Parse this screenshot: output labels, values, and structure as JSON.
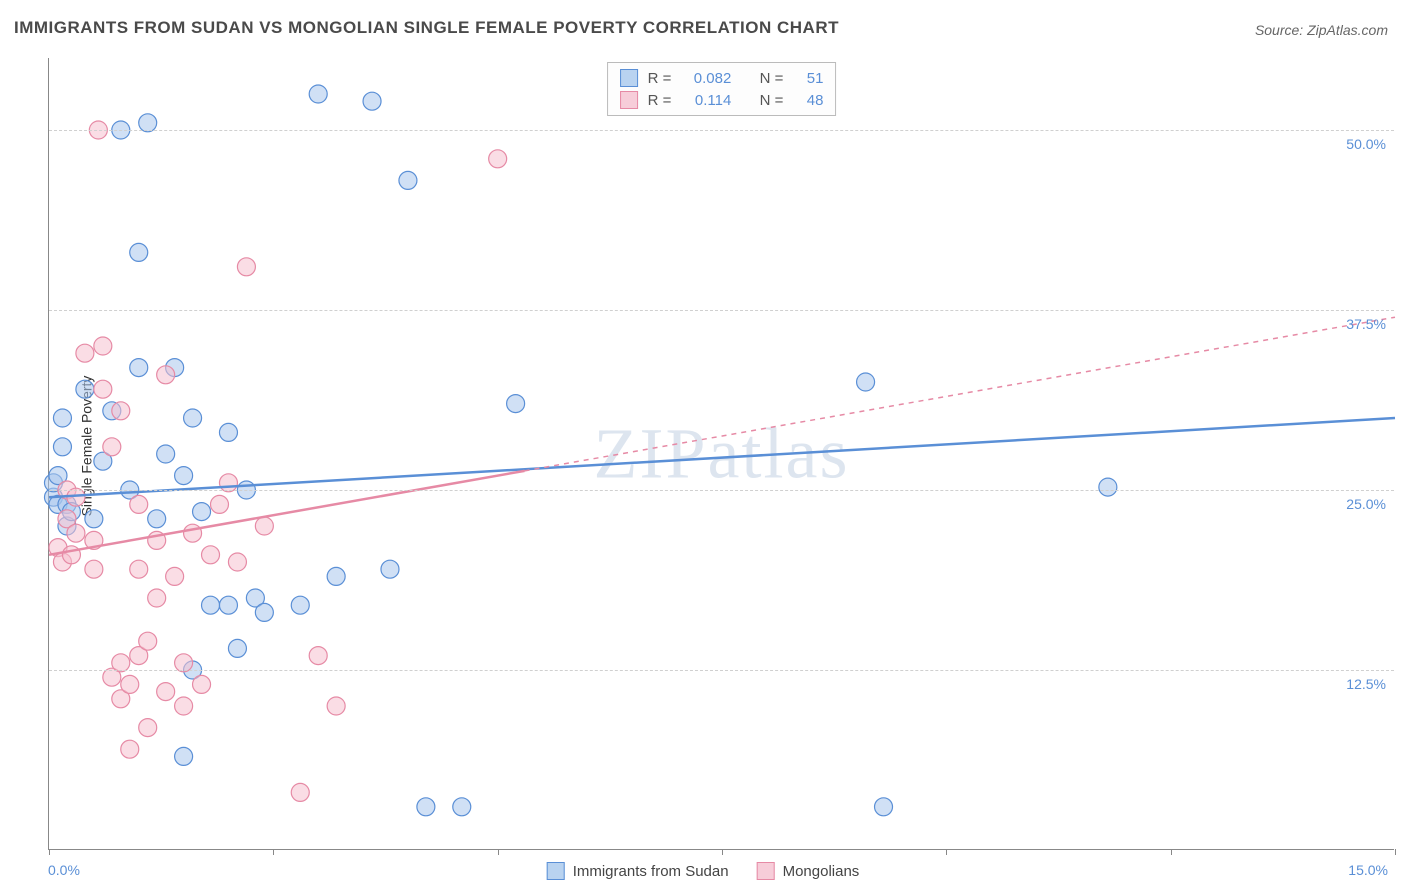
{
  "title": "IMMIGRANTS FROM SUDAN VS MONGOLIAN SINGLE FEMALE POVERTY CORRELATION CHART",
  "source": "Source: ZipAtlas.com",
  "watermark": "ZIPatlas",
  "y_axis_label": "Single Female Poverty",
  "chart": {
    "type": "scatter",
    "xlim": [
      0,
      15
    ],
    "ylim": [
      0,
      55
    ],
    "y_gridlines": [
      12.5,
      25.0,
      37.5,
      50.0
    ],
    "y_tick_labels": [
      "12.5%",
      "25.0%",
      "37.5%",
      "50.0%"
    ],
    "x_ticks": [
      0,
      2.5,
      5.0,
      7.5,
      10.0,
      12.5,
      15.0
    ],
    "x_min_label": "0.0%",
    "x_max_label": "15.0%",
    "background_color": "#ffffff",
    "grid_color": "#d0d0d0",
    "axis_color": "#888888",
    "marker_radius": 9,
    "marker_opacity": 0.55,
    "series": [
      {
        "name": "Immigrants from Sudan",
        "color_stroke": "#5a8fd6",
        "color_fill": "#a9c7ec",
        "swatch_fill": "#b9d3f0",
        "swatch_border": "#5a8fd6",
        "R": "0.082",
        "N": "51",
        "trend": {
          "x1": 0,
          "y1": 24.5,
          "x2": 15,
          "y2": 30.0,
          "solid_to_x": 15,
          "stroke_width": 2.5
        },
        "points": [
          [
            0.05,
            24.5
          ],
          [
            0.05,
            25.5
          ],
          [
            0.1,
            24.0
          ],
          [
            0.1,
            26.0
          ],
          [
            0.15,
            28.0
          ],
          [
            0.15,
            30.0
          ],
          [
            0.2,
            22.5
          ],
          [
            0.2,
            24.0
          ],
          [
            0.25,
            23.5
          ],
          [
            0.4,
            32.0
          ],
          [
            0.5,
            23.0
          ],
          [
            0.6,
            27.0
          ],
          [
            0.7,
            30.5
          ],
          [
            0.8,
            50.0
          ],
          [
            0.9,
            25.0
          ],
          [
            1.0,
            33.5
          ],
          [
            1.0,
            41.5
          ],
          [
            1.1,
            50.5
          ],
          [
            1.2,
            23.0
          ],
          [
            1.3,
            27.5
          ],
          [
            1.4,
            33.5
          ],
          [
            1.5,
            6.5
          ],
          [
            1.5,
            26.0
          ],
          [
            1.6,
            12.5
          ],
          [
            1.6,
            30.0
          ],
          [
            1.7,
            23.5
          ],
          [
            1.8,
            17.0
          ],
          [
            2.0,
            29.0
          ],
          [
            2.0,
            17.0
          ],
          [
            2.1,
            14.0
          ],
          [
            2.2,
            25.0
          ],
          [
            2.3,
            17.5
          ],
          [
            2.4,
            16.5
          ],
          [
            2.8,
            17.0
          ],
          [
            3.0,
            52.5
          ],
          [
            3.2,
            19.0
          ],
          [
            3.6,
            52.0
          ],
          [
            3.8,
            19.5
          ],
          [
            4.0,
            46.5
          ],
          [
            4.2,
            3.0
          ],
          [
            4.6,
            3.0
          ],
          [
            5.2,
            31.0
          ],
          [
            9.1,
            32.5
          ],
          [
            9.3,
            3.0
          ],
          [
            11.8,
            25.2
          ]
        ]
      },
      {
        "name": "Mongolians",
        "color_stroke": "#e68aa5",
        "color_fill": "#f5c1d0",
        "swatch_fill": "#f7cdd9",
        "swatch_border": "#e68aa5",
        "R": "0.114",
        "N": "48",
        "trend": {
          "x1": 0,
          "y1": 20.5,
          "x2": 15,
          "y2": 37.0,
          "solid_to_x": 5.3,
          "stroke_width": 2.5
        },
        "points": [
          [
            0.1,
            21.0
          ],
          [
            0.15,
            20.0
          ],
          [
            0.2,
            23.0
          ],
          [
            0.2,
            25.0
          ],
          [
            0.25,
            20.5
          ],
          [
            0.3,
            22.0
          ],
          [
            0.3,
            24.5
          ],
          [
            0.4,
            34.5
          ],
          [
            0.5,
            19.5
          ],
          [
            0.5,
            21.5
          ],
          [
            0.55,
            50.0
          ],
          [
            0.6,
            32.0
          ],
          [
            0.6,
            35.0
          ],
          [
            0.7,
            12.0
          ],
          [
            0.7,
            28.0
          ],
          [
            0.8,
            10.5
          ],
          [
            0.8,
            13.0
          ],
          [
            0.8,
            30.5
          ],
          [
            0.9,
            7.0
          ],
          [
            0.9,
            11.5
          ],
          [
            1.0,
            13.5
          ],
          [
            1.0,
            19.5
          ],
          [
            1.0,
            24.0
          ],
          [
            1.1,
            8.5
          ],
          [
            1.1,
            14.5
          ],
          [
            1.2,
            17.5
          ],
          [
            1.2,
            21.5
          ],
          [
            1.3,
            11.0
          ],
          [
            1.3,
            33.0
          ],
          [
            1.4,
            19.0
          ],
          [
            1.5,
            10.0
          ],
          [
            1.5,
            13.0
          ],
          [
            1.6,
            22.0
          ],
          [
            1.7,
            11.5
          ],
          [
            1.8,
            20.5
          ],
          [
            1.9,
            24.0
          ],
          [
            2.0,
            25.5
          ],
          [
            2.1,
            20.0
          ],
          [
            2.2,
            40.5
          ],
          [
            2.4,
            22.5
          ],
          [
            2.8,
            4.0
          ],
          [
            3.0,
            13.5
          ],
          [
            3.2,
            10.0
          ],
          [
            5.0,
            48.0
          ]
        ]
      }
    ]
  },
  "legend_top": {
    "R_label": "R =",
    "N_label": "N ="
  },
  "legend_bottom_items": [
    "Immigrants from Sudan",
    "Mongolians"
  ]
}
